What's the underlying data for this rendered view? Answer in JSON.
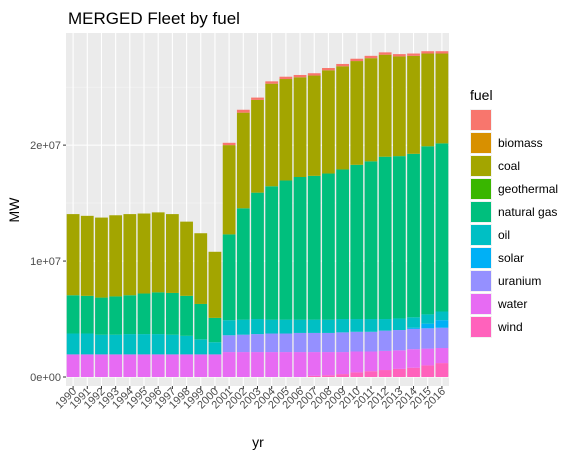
{
  "chart_data": {
    "type": "bar",
    "stacked": true,
    "title": "MERGED Fleet by fuel",
    "xlabel": "yr",
    "ylabel": "MW",
    "ylim": [
      0,
      28500000
    ],
    "yticks": [
      {
        "value": 0,
        "label": "0e+00"
      },
      {
        "value": 10000000,
        "label": "1e+07"
      },
      {
        "value": 20000000,
        "label": "2e+07"
      }
    ],
    "categories": [
      "1990",
      "1991",
      "1992",
      "1993",
      "1994",
      "1995",
      "1996",
      "1997",
      "1998",
      "1999",
      "2000",
      "2001",
      "2002",
      "2003",
      "2004",
      "2005",
      "2006",
      "2007",
      "2008",
      "2009",
      "2010",
      "2011",
      "2012",
      "2013",
      "2014",
      "2015",
      "2016"
    ],
    "legend": {
      "title": "fuel",
      "position": "right",
      "entries": [
        {
          "label": "",
          "color": "#F8766D"
        },
        {
          "label": "biomass",
          "color": "#D89000"
        },
        {
          "label": "coal",
          "color": "#A3A500"
        },
        {
          "label": "geothermal",
          "color": "#39B600"
        },
        {
          "label": "natural gas",
          "color": "#00BF7D"
        },
        {
          "label": "oil",
          "color": "#00BFC4"
        },
        {
          "label": "solar",
          "color": "#00B0F6"
        },
        {
          "label": "uranium",
          "color": "#9590FF"
        },
        {
          "label": "water",
          "color": "#E76BF3"
        },
        {
          "label": "wind",
          "color": "#FF62BC"
        }
      ]
    },
    "series": [
      {
        "name": "wind",
        "color": "#FF62BC",
        "values": [
          0,
          0,
          0,
          0,
          0,
          0,
          0,
          0,
          0,
          0,
          0,
          0,
          0,
          0,
          0,
          0,
          0,
          100000,
          150000,
          250000,
          400000,
          500000,
          600000,
          700000,
          800000,
          1000000,
          1200000
        ]
      },
      {
        "name": "water",
        "color": "#E76BF3",
        "values": [
          1950000,
          1950000,
          1950000,
          1950000,
          1950000,
          1950000,
          1950000,
          1950000,
          1950000,
          1950000,
          1950000,
          2150000,
          2150000,
          2150000,
          2150000,
          2150000,
          2150000,
          2050000,
          2000000,
          1900000,
          1800000,
          1700000,
          1650000,
          1600000,
          1600000,
          1450000,
          1300000
        ]
      },
      {
        "name": "uranium",
        "color": "#9590FF",
        "values": [
          0,
          0,
          0,
          0,
          0,
          0,
          0,
          0,
          0,
          0,
          0,
          1450000,
          1500000,
          1550000,
          1600000,
          1600000,
          1650000,
          1650000,
          1650000,
          1700000,
          1700000,
          1700000,
          1750000,
          1750000,
          1750000,
          1750000,
          1750000
        ]
      },
      {
        "name": "solar",
        "color": "#00B0F6",
        "values": [
          0,
          0,
          0,
          0,
          0,
          0,
          0,
          0,
          0,
          0,
          0,
          0,
          0,
          0,
          0,
          0,
          0,
          0,
          0,
          0,
          0,
          0,
          0,
          0,
          100000,
          400000,
          650000
        ]
      },
      {
        "name": "oil",
        "color": "#00BFC4",
        "values": [
          1800000,
          1800000,
          1700000,
          1700000,
          1750000,
          1750000,
          1750000,
          1700000,
          1600000,
          1300000,
          1050000,
          1300000,
          1300000,
          1300000,
          1200000,
          1200000,
          1150000,
          1150000,
          1150000,
          1150000,
          1100000,
          1100000,
          1000000,
          1000000,
          900000,
          800000,
          750000
        ]
      },
      {
        "name": "geothermal",
        "color": "#39B600",
        "values": [
          0,
          0,
          0,
          0,
          0,
          0,
          0,
          0,
          0,
          0,
          0,
          0,
          0,
          0,
          0,
          0,
          0,
          0,
          0,
          0,
          0,
          0,
          0,
          0,
          0,
          0,
          0
        ]
      },
      {
        "name": "natural gas",
        "color": "#00BF7D",
        "values": [
          3300000,
          3250000,
          3200000,
          3300000,
          3350000,
          3500000,
          3600000,
          3600000,
          3450000,
          3050000,
          2100000,
          7400000,
          9600000,
          10900000,
          11500000,
          12000000,
          12300000,
          12400000,
          12600000,
          12900000,
          13300000,
          13600000,
          14000000,
          14000000,
          14100000,
          14500000,
          14500000
        ]
      },
      {
        "name": "biomass",
        "color": "#D89000",
        "values": [
          0,
          0,
          0,
          0,
          0,
          0,
          0,
          0,
          0,
          0,
          0,
          0,
          0,
          0,
          0,
          0,
          0,
          0,
          0,
          0,
          0,
          0,
          0,
          0,
          0,
          0,
          0
        ]
      },
      {
        "name": "coal",
        "color": "#A3A500",
        "values": [
          7000000,
          6900000,
          6900000,
          7000000,
          7000000,
          6900000,
          6900000,
          6800000,
          6400000,
          6100000,
          5700000,
          7700000,
          8250000,
          8000000,
          8850000,
          8750000,
          8600000,
          8650000,
          8900000,
          8900000,
          8950000,
          8900000,
          8800000,
          8600000,
          8450000,
          8000000,
          7750000
        ]
      },
      {
        "name": "",
        "color": "#F8766D",
        "values": [
          0,
          0,
          0,
          0,
          0,
          0,
          0,
          0,
          0,
          0,
          0,
          200000,
          250000,
          200000,
          200000,
          200000,
          200000,
          200000,
          200000,
          200000,
          200000,
          200000,
          200000,
          200000,
          200000,
          200000,
          200000
        ]
      }
    ]
  }
}
